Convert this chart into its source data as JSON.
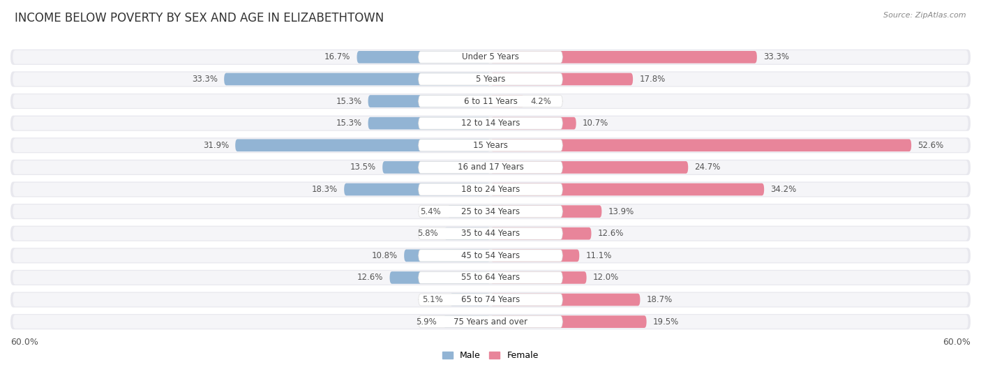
{
  "title": "INCOME BELOW POVERTY BY SEX AND AGE IN ELIZABETHTOWN",
  "source": "Source: ZipAtlas.com",
  "categories": [
    "Under 5 Years",
    "5 Years",
    "6 to 11 Years",
    "12 to 14 Years",
    "15 Years",
    "16 and 17 Years",
    "18 to 24 Years",
    "25 to 34 Years",
    "35 to 44 Years",
    "45 to 54 Years",
    "55 to 64 Years",
    "65 to 74 Years",
    "75 Years and over"
  ],
  "male_values": [
    16.7,
    33.3,
    15.3,
    15.3,
    31.9,
    13.5,
    18.3,
    5.4,
    5.8,
    10.8,
    12.6,
    5.1,
    5.9
  ],
  "female_values": [
    33.3,
    17.8,
    4.2,
    10.7,
    52.6,
    24.7,
    34.2,
    13.9,
    12.6,
    11.1,
    12.0,
    18.7,
    19.5
  ],
  "male_color": "#92b4d4",
  "female_color": "#e8859a",
  "male_label": "Male",
  "female_label": "Female",
  "axis_limit": 60.0,
  "axis_label_left": "60.0%",
  "axis_label_right": "60.0%",
  "bar_height": 0.62,
  "row_bg_color": "#e8e8ee",
  "row_inner_color": "#f5f5f8",
  "label_bg_color": "#ffffff",
  "title_fontsize": 12,
  "label_fontsize": 9,
  "value_fontsize": 8.5,
  "source_fontsize": 8,
  "category_fontsize": 8.5
}
